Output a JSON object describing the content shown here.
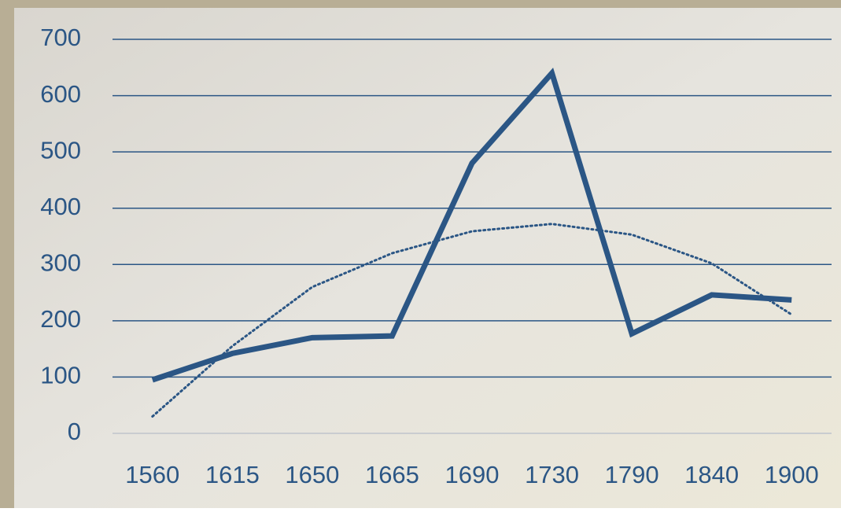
{
  "chart_data": {
    "type": "line",
    "categories": [
      "1560",
      "1615",
      "1650",
      "1665",
      "1690",
      "1730",
      "1790",
      "1840",
      "1900"
    ],
    "series": [
      {
        "color": "#2b5685",
        "values": [
          95,
          142,
          170,
          173,
          480,
          640,
          177,
          246,
          237
        ]
      },
      {
        "color": "#2b5685",
        "dotted": true,
        "values": [
          30,
          155,
          260,
          320,
          359,
          372,
          353,
          302,
          211
        ]
      }
    ],
    "ylim": [
      0,
      700
    ],
    "yticks": [
      0,
      100,
      200,
      300,
      400,
      500,
      600,
      700
    ],
    "grid": true
  }
}
